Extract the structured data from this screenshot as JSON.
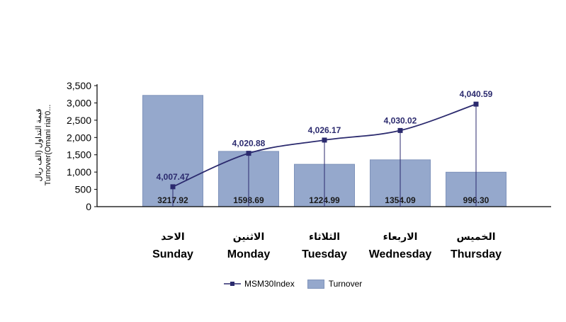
{
  "chart_data": {
    "type": "bar+line",
    "categories": [
      {
        "ar": "الاحد",
        "en": "Sunday"
      },
      {
        "ar": "الاثنين",
        "en": "Monday"
      },
      {
        "ar": "الثلاثاء",
        "en": "Tuesday"
      },
      {
        "ar": "الاربعاء",
        "en": "Wednesday"
      },
      {
        "ar": "الخميس",
        "en": "Thursday"
      }
    ],
    "series": [
      {
        "name": "Turnover",
        "type": "bar",
        "values": [
          3217.92,
          1598.69,
          1224.99,
          1354.09,
          996.3
        ],
        "labels": [
          "3217.92",
          "1598.69",
          "1224.99",
          "1354.09",
          "996.30"
        ],
        "color": "#95a8cc"
      },
      {
        "name": "MSM30Index",
        "type": "line",
        "values": [
          4007.47,
          4020.88,
          4026.17,
          4030.02,
          4040.59
        ],
        "labels": [
          "4,007.47",
          "4,020.88",
          "4,026.17",
          "4,030.02",
          "4,040.59"
        ],
        "color": "#2b2a6e"
      }
    ],
    "ylabel_ar": "قيمة التداول (الف ريال",
    "ylabel_en": "Turnover(Omani rial'0...",
    "ylim": [
      0,
      3500
    ],
    "yticks": [
      0,
      500,
      1000,
      1500,
      2000,
      2500,
      3000,
      3500
    ],
    "ytick_labels": [
      "0",
      "500",
      "1,000",
      "1,500",
      "2,000",
      "2,500",
      "3,000",
      "3,500"
    ],
    "line_range": [
      3999.5,
      4048
    ],
    "legend_position": "bottom",
    "grid": false
  },
  "legend": {
    "line_label": "MSM30Index",
    "bar_label": "Turnover"
  }
}
